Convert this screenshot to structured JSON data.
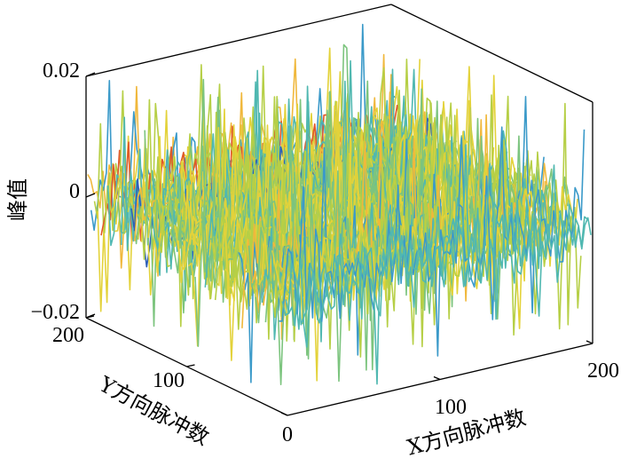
{
  "chart_data": {
    "type": "line",
    "title": "",
    "xlabel": "X方向脉冲数",
    "ylabel": "Y方向脉冲数",
    "zlabel": "峰值",
    "xlim": [
      0,
      200
    ],
    "ylim": [
      0,
      200
    ],
    "zlim": [
      -0.02,
      0.02
    ],
    "x_ticks": [
      0,
      100,
      200
    ],
    "x_tick_labels": [
      "0",
      "100",
      "200"
    ],
    "y_ticks": [
      100,
      200
    ],
    "y_tick_labels": [
      "100",
      "200"
    ],
    "z_ticks": [
      -0.02,
      0,
      0.02
    ],
    "z_tick_labels": [
      "−0.02",
      "0",
      "0.02"
    ],
    "grid": false,
    "series_count": 60,
    "samples_per_series": 200,
    "value_range_typical": [
      -0.012,
      0.012
    ],
    "value_range_extreme": [
      -0.019,
      0.019
    ],
    "colormap": [
      "#2e5fb8",
      "#3b9ac9",
      "#50b8b1",
      "#7cc47e",
      "#b6cf46",
      "#e3d23a",
      "#f0b83c",
      "#e0582a"
    ]
  }
}
